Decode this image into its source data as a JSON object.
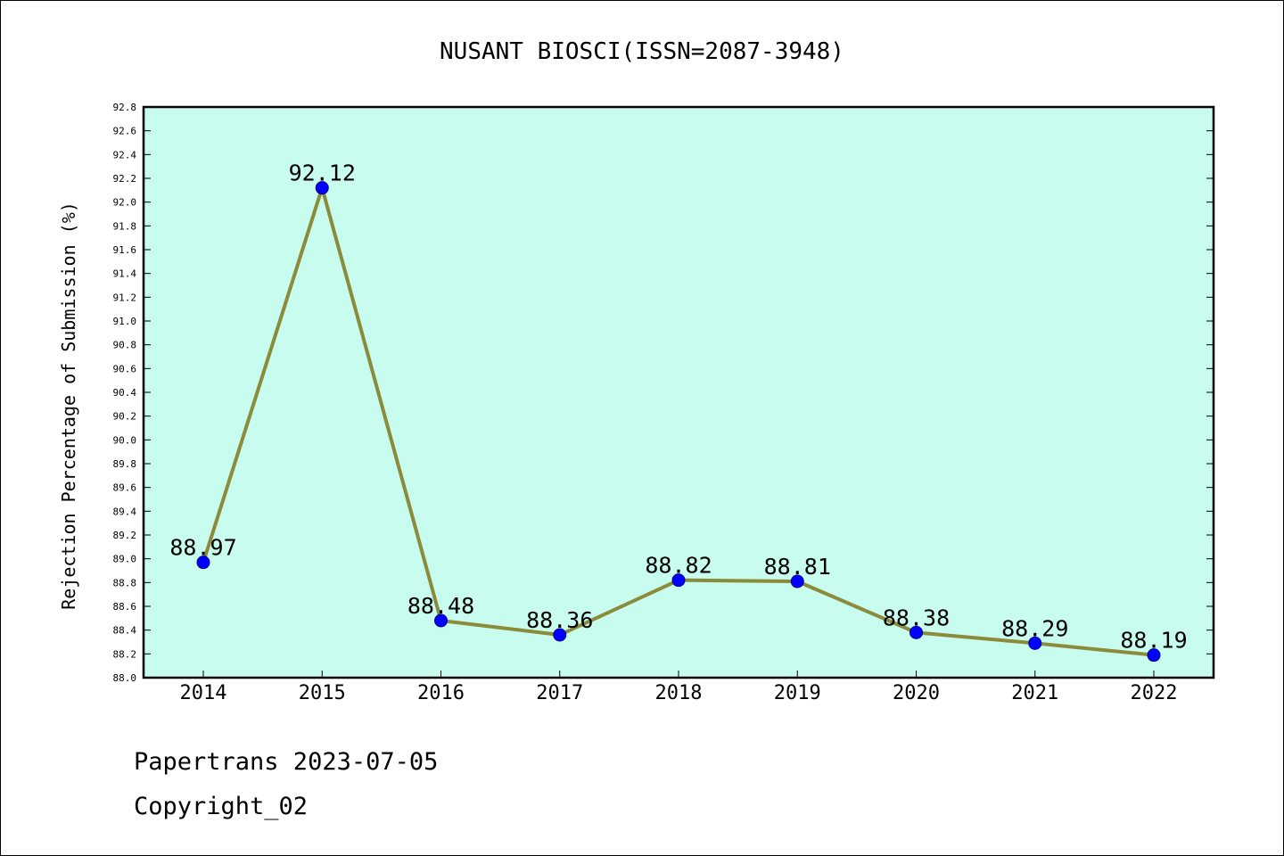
{
  "chart_data": {
    "type": "line",
    "title": "NUSANT BIOSCI(ISSN=2087-3948)",
    "xlabel": "",
    "ylabel": "Rejection Percentage of Submission (%)",
    "categories": [
      "2014",
      "2015",
      "2016",
      "2017",
      "2018",
      "2019",
      "2020",
      "2021",
      "2022"
    ],
    "values": [
      88.97,
      92.12,
      88.48,
      88.36,
      88.82,
      88.81,
      88.38,
      88.29,
      88.19
    ],
    "data_labels": [
      "88.97",
      "92.12",
      "88.48",
      "88.36",
      "88.82",
      "88.81",
      "88.38",
      "88.29",
      "88.19"
    ],
    "ylim": [
      88.0,
      92.8
    ],
    "ytick_step": 0.2,
    "grid": false,
    "colors": {
      "plot_background": "#c8fcee",
      "line": "#8b8b3c",
      "marker": "#0000ff",
      "axes": "#000000"
    }
  },
  "footer": {
    "line1": "Papertrans 2023-07-05",
    "line2": "Copyright_02"
  }
}
